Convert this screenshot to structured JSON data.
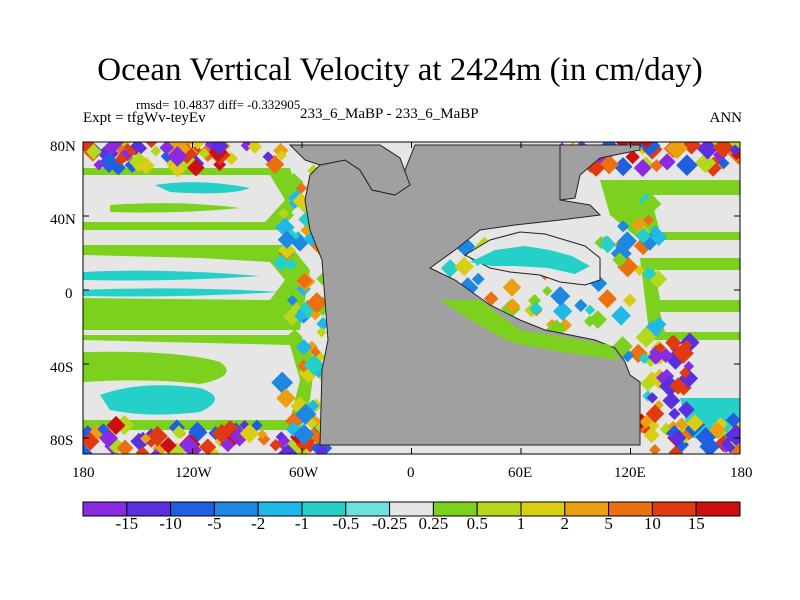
{
  "title": "Ocean Vertical Velocity at 2424m (in cm/day)",
  "stats": "rmsd= 10.4837 diff= -0.332905",
  "experiment": "Expt = tfgWv-teyEv",
  "runs": "233_6_MaBP - 233_6_MaBP",
  "season": "ANN",
  "lat_ticks": [
    "80N",
    "40N",
    "0",
    "40S",
    "80S"
  ],
  "lon_ticks": [
    "180",
    "120W",
    "60W",
    "0",
    "60E",
    "120E",
    "180"
  ],
  "colorbar": {
    "labels": [
      "-15",
      "-10",
      "-5",
      "-2",
      "-1",
      "-0.5",
      "-0.25",
      "0.25",
      "0.5",
      "1",
      "2",
      "5",
      "10",
      "15"
    ],
    "colors": [
      "#8a2be2",
      "#5a2fe0",
      "#1f5fe0",
      "#1e88e0",
      "#20b8e6",
      "#25d0c8",
      "#6ee0e0",
      "#e6e6e6",
      "#7cd11e",
      "#b5d91a",
      "#d8cf14",
      "#eaa010",
      "#ea7010",
      "#e03a10",
      "#cc1010"
    ]
  },
  "colors": {
    "land": "#a0a0a0",
    "neutral": "#e6e6e6"
  }
}
